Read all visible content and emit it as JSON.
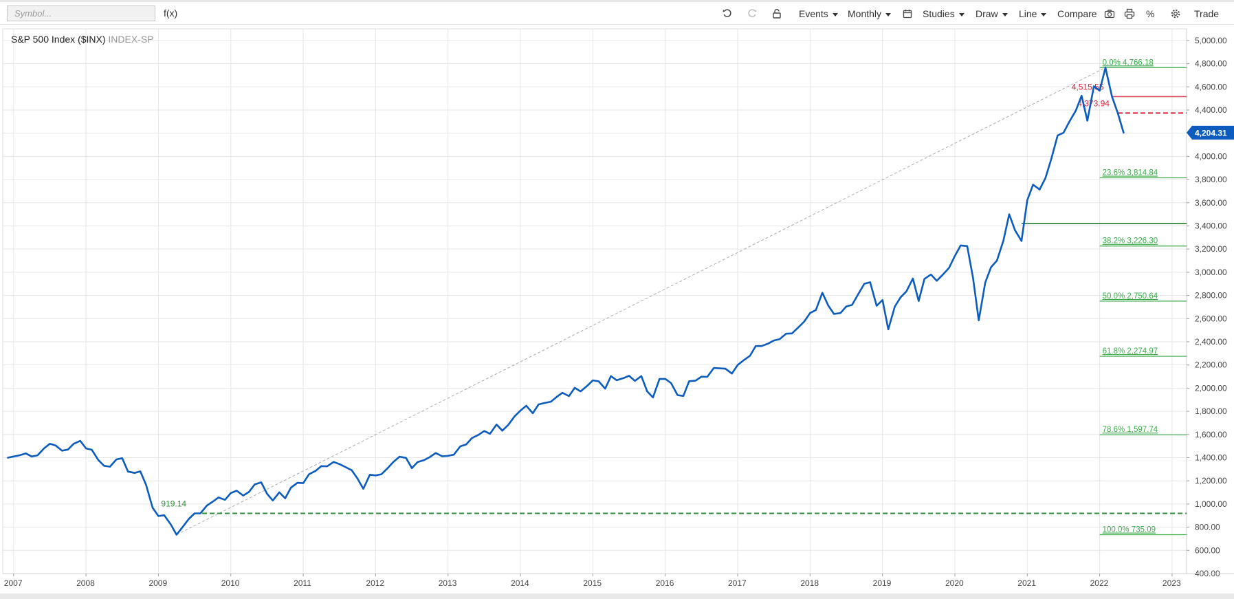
{
  "toolbar": {
    "symbol_placeholder": "Symbol...",
    "fx_label": "f(x)",
    "events_label": "Events",
    "interval_label": "Monthly",
    "studies_label": "Studies",
    "draw_label": "Draw",
    "line_label": "Line",
    "compare_label": "Compare",
    "percent_label": "%",
    "trade_label": "Trade",
    "icons": [
      "undo-icon",
      "redo-icon",
      "lock-icon",
      "calendar-icon",
      "camera-icon",
      "print-icon",
      "gear-icon"
    ]
  },
  "chart": {
    "title": "S&P 500 Index ($INX)",
    "exchange": "INDEX-SP"
  },
  "chart_data": {
    "type": "line",
    "series": [
      {
        "color": "#0b5cbe",
        "values": [
          [
            2006.92,
            1400
          ],
          [
            2007.0,
            1410
          ],
          [
            2007.08,
            1420
          ],
          [
            2007.17,
            1437
          ],
          [
            2007.25,
            1410
          ],
          [
            2007.33,
            1420
          ],
          [
            2007.42,
            1480
          ],
          [
            2007.5,
            1520
          ],
          [
            2007.58,
            1505
          ],
          [
            2007.67,
            1460
          ],
          [
            2007.75,
            1470
          ],
          [
            2007.83,
            1520
          ],
          [
            2007.92,
            1545
          ],
          [
            2008.0,
            1480
          ],
          [
            2008.08,
            1468
          ],
          [
            2008.17,
            1380
          ],
          [
            2008.25,
            1330
          ],
          [
            2008.33,
            1322
          ],
          [
            2008.42,
            1385
          ],
          [
            2008.5,
            1395
          ],
          [
            2008.58,
            1280
          ],
          [
            2008.67,
            1268
          ],
          [
            2008.75,
            1282
          ],
          [
            2008.83,
            1165
          ],
          [
            2008.92,
            968
          ],
          [
            2009.0,
            896
          ],
          [
            2009.08,
            903
          ],
          [
            2009.17,
            825
          ],
          [
            2009.25,
            735
          ],
          [
            2009.33,
            798
          ],
          [
            2009.42,
            872
          ],
          [
            2009.5,
            919
          ],
          [
            2009.58,
            919
          ],
          [
            2009.67,
            987
          ],
          [
            2009.75,
            1020
          ],
          [
            2009.83,
            1057
          ],
          [
            2009.92,
            1036
          ],
          [
            2010.0,
            1095
          ],
          [
            2010.08,
            1115
          ],
          [
            2010.17,
            1073
          ],
          [
            2010.25,
            1104
          ],
          [
            2010.33,
            1169
          ],
          [
            2010.42,
            1187
          ],
          [
            2010.5,
            1089
          ],
          [
            2010.58,
            1030
          ],
          [
            2010.67,
            1101
          ],
          [
            2010.75,
            1049
          ],
          [
            2010.83,
            1141
          ],
          [
            2010.92,
            1183
          ],
          [
            2011.0,
            1180
          ],
          [
            2011.08,
            1257
          ],
          [
            2011.17,
            1286
          ],
          [
            2011.25,
            1327
          ],
          [
            2011.33,
            1325
          ],
          [
            2011.42,
            1363
          ],
          [
            2011.5,
            1345
          ],
          [
            2011.58,
            1320
          ],
          [
            2011.67,
            1292
          ],
          [
            2011.75,
            1219
          ],
          [
            2011.83,
            1131
          ],
          [
            2011.92,
            1253
          ],
          [
            2012.0,
            1247
          ],
          [
            2012.08,
            1257
          ],
          [
            2012.17,
            1312
          ],
          [
            2012.25,
            1366
          ],
          [
            2012.33,
            1408
          ],
          [
            2012.42,
            1398
          ],
          [
            2012.5,
            1310
          ],
          [
            2012.58,
            1362
          ],
          [
            2012.67,
            1379
          ],
          [
            2012.75,
            1406
          ],
          [
            2012.83,
            1440
          ],
          [
            2012.92,
            1412
          ],
          [
            2013.0,
            1416
          ],
          [
            2013.08,
            1426
          ],
          [
            2013.17,
            1498
          ],
          [
            2013.25,
            1514
          ],
          [
            2013.33,
            1569
          ],
          [
            2013.42,
            1597
          ],
          [
            2013.5,
            1630
          ],
          [
            2013.58,
            1606
          ],
          [
            2013.67,
            1686
          ],
          [
            2013.75,
            1633
          ],
          [
            2013.83,
            1681
          ],
          [
            2013.92,
            1757
          ],
          [
            2014.0,
            1806
          ],
          [
            2014.08,
            1848
          ],
          [
            2014.17,
            1783
          ],
          [
            2014.25,
            1859
          ],
          [
            2014.33,
            1872
          ],
          [
            2014.42,
            1883
          ],
          [
            2014.5,
            1924
          ],
          [
            2014.58,
            1960
          ],
          [
            2014.67,
            1931
          ],
          [
            2014.75,
            2003
          ],
          [
            2014.83,
            1972
          ],
          [
            2014.92,
            2018
          ],
          [
            2015.0,
            2067
          ],
          [
            2015.08,
            2059
          ],
          [
            2015.17,
            1995
          ],
          [
            2015.25,
            2104
          ],
          [
            2015.33,
            2068
          ],
          [
            2015.42,
            2086
          ],
          [
            2015.5,
            2107
          ],
          [
            2015.58,
            2063
          ],
          [
            2015.67,
            2104
          ],
          [
            2015.75,
            1972
          ],
          [
            2015.83,
            1920
          ],
          [
            2015.92,
            2079
          ],
          [
            2016.0,
            2080
          ],
          [
            2016.08,
            2044
          ],
          [
            2016.17,
            1940
          ],
          [
            2016.25,
            1932
          ],
          [
            2016.33,
            2060
          ],
          [
            2016.42,
            2065
          ],
          [
            2016.5,
            2099
          ],
          [
            2016.58,
            2097
          ],
          [
            2016.67,
            2174
          ],
          [
            2016.75,
            2171
          ],
          [
            2016.83,
            2168
          ],
          [
            2016.92,
            2126
          ],
          [
            2017.0,
            2199
          ],
          [
            2017.08,
            2239
          ],
          [
            2017.17,
            2279
          ],
          [
            2017.25,
            2363
          ],
          [
            2017.33,
            2363
          ],
          [
            2017.42,
            2384
          ],
          [
            2017.5,
            2411
          ],
          [
            2017.58,
            2423
          ],
          [
            2017.67,
            2470
          ],
          [
            2017.75,
            2472
          ],
          [
            2017.83,
            2519
          ],
          [
            2017.92,
            2575
          ],
          [
            2018.0,
            2648
          ],
          [
            2018.08,
            2674
          ],
          [
            2018.17,
            2823
          ],
          [
            2018.25,
            2714
          ],
          [
            2018.33,
            2640
          ],
          [
            2018.42,
            2648
          ],
          [
            2018.5,
            2705
          ],
          [
            2018.58,
            2718
          ],
          [
            2018.67,
            2816
          ],
          [
            2018.75,
            2901
          ],
          [
            2018.83,
            2914
          ],
          [
            2018.92,
            2711
          ],
          [
            2019.0,
            2760
          ],
          [
            2019.08,
            2507
          ],
          [
            2019.17,
            2704
          ],
          [
            2019.25,
            2784
          ],
          [
            2019.33,
            2834
          ],
          [
            2019.42,
            2946
          ],
          [
            2019.5,
            2752
          ],
          [
            2019.58,
            2942
          ],
          [
            2019.67,
            2980
          ],
          [
            2019.75,
            2926
          ],
          [
            2019.83,
            2977
          ],
          [
            2019.92,
            3038
          ],
          [
            2020.0,
            3141
          ],
          [
            2020.08,
            3231
          ],
          [
            2020.17,
            3226
          ],
          [
            2020.25,
            2954
          ],
          [
            2020.33,
            2585
          ],
          [
            2020.42,
            2912
          ],
          [
            2020.5,
            3044
          ],
          [
            2020.58,
            3100
          ],
          [
            2020.67,
            3271
          ],
          [
            2020.75,
            3500
          ],
          [
            2020.83,
            3363
          ],
          [
            2020.92,
            3270
          ],
          [
            2021.0,
            3622
          ],
          [
            2021.08,
            3756
          ],
          [
            2021.17,
            3714
          ],
          [
            2021.25,
            3811
          ],
          [
            2021.33,
            3973
          ],
          [
            2021.42,
            4181
          ],
          [
            2021.5,
            4204
          ],
          [
            2021.58,
            4298
          ],
          [
            2021.67,
            4395
          ],
          [
            2021.75,
            4523
          ],
          [
            2021.83,
            4308
          ],
          [
            2021.92,
            4605
          ],
          [
            2022.0,
            4567
          ],
          [
            2022.08,
            4766
          ],
          [
            2022.17,
            4516
          ],
          [
            2022.25,
            4374
          ],
          [
            2022.33,
            4204
          ]
        ]
      }
    ],
    "xlim": [
      2006.85,
      2023.2
    ],
    "ylim": [
      400,
      5100
    ],
    "x_ticks": [
      2007,
      2008,
      2009,
      2010,
      2011,
      2012,
      2013,
      2014,
      2015,
      2016,
      2017,
      2018,
      2019,
      2020,
      2021,
      2022,
      2023
    ],
    "y_ticks": [
      400,
      600,
      800,
      1000,
      1200,
      1400,
      1600,
      1800,
      2000,
      2200,
      2400,
      2600,
      2800,
      3000,
      3200,
      3400,
      3600,
      3800,
      4000,
      4200,
      4400,
      4600,
      4800,
      5000
    ],
    "x_tick_labels": [
      "2007",
      "2008",
      "2009",
      "2010",
      "2011",
      "2012",
      "2013",
      "2014",
      "2015",
      "2016",
      "2017",
      "2018",
      "2019",
      "2020",
      "2021",
      "2022",
      "2023"
    ],
    "y_tick_labels": [
      "400.00",
      "600.00",
      "800.00",
      "1,000.00",
      "1,200.00",
      "1,400.00",
      "1,600.00",
      "1,800.00",
      "2,000.00",
      "2,200.00",
      "2,400.00",
      "2,600.00",
      "2,800.00",
      "3,000.00",
      "3,200.00",
      "3,400.00",
      "3,600.00",
      "3,800.00",
      "4,000.00",
      "4,200.00",
      "4,400.00",
      "4,600.00",
      "4,800.00",
      "5,000.00"
    ],
    "grid": true,
    "last_price": {
      "value": 4204.31,
      "label": "4,204.31",
      "color": "#0b5cbe"
    },
    "fibonacci": {
      "color": "#3caa4b",
      "x_start": 2022.0,
      "levels": [
        {
          "value": 4766.18,
          "label": "0.0% 4,766.18"
        },
        {
          "value": 3814.84,
          "label": "23.6% 3,814.84"
        },
        {
          "value": 3226.3,
          "label": "38.2% 3,226.30"
        },
        {
          "value": 2750.64,
          "label": "50.0% 2,750.64"
        },
        {
          "value": 2274.97,
          "label": "61.8% 2,274.97"
        },
        {
          "value": 1597.74,
          "label": "78.6% 1,597.74"
        },
        {
          "value": 735.09,
          "label": "100.0% 735.09"
        }
      ]
    },
    "trend_line": {
      "from": [
        2009.25,
        735.09
      ],
      "to": [
        2022.08,
        4766.18
      ],
      "color": "#aaaaaa"
    },
    "horizontal_lines": [
      {
        "value": 919.14,
        "label": "919.14",
        "from_x": 2009.5,
        "style": "dashed",
        "color": "#2e8b3a",
        "label_color": "#2e8b3a"
      },
      {
        "value": 3420,
        "label": "",
        "from_x": 2020.92,
        "style": "solid",
        "color": "#1f7a2a",
        "label_color": "#1f7a2a"
      },
      {
        "value": 4515.55,
        "label": "4,515.55",
        "from_x": 2022.17,
        "style": "solid",
        "color": "#e04a5a",
        "label_color": "#e0203a"
      },
      {
        "value": 4373.94,
        "label": "4,373.94",
        "from_x": 2022.25,
        "style": "dashed",
        "color": "#e0203a",
        "label_color": "#e0203a"
      }
    ]
  }
}
